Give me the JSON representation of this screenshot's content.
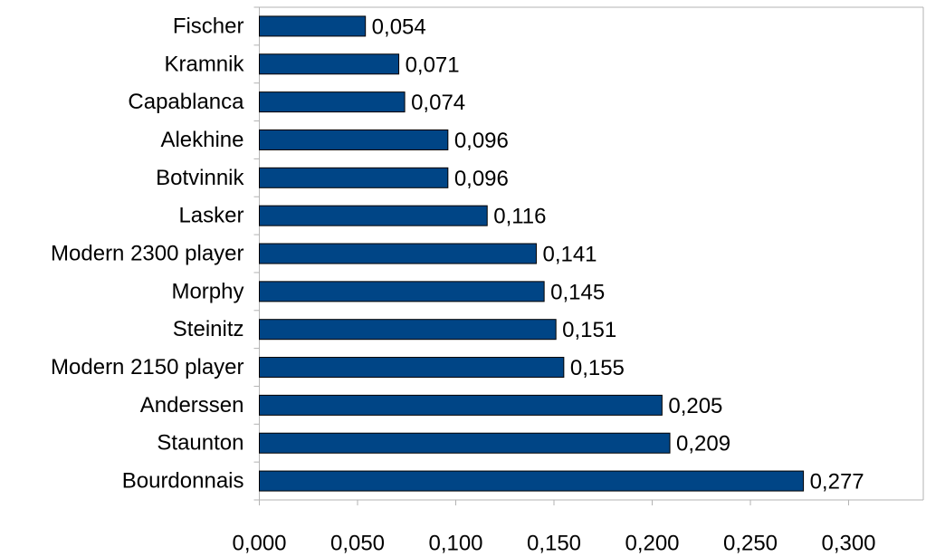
{
  "chart_data": {
    "type": "bar",
    "orientation": "horizontal",
    "categories": [
      "Fischer",
      "Kramnik",
      "Capablanca",
      "Alekhine",
      "Botvinnik",
      "Lasker",
      "Modern 2300 player",
      "Morphy",
      "Steinitz",
      "Modern 2150 player",
      "Anderssen",
      "Staunton",
      "Bourdonnais"
    ],
    "values": [
      0.054,
      0.071,
      0.074,
      0.096,
      0.096,
      0.116,
      0.141,
      0.145,
      0.151,
      0.155,
      0.205,
      0.209,
      0.277
    ],
    "data_labels": [
      "0,054",
      "0,071",
      "0,074",
      "0,096",
      "0,096",
      "0,116",
      "0,141",
      "0,145",
      "0,151",
      "0,155",
      "0,205",
      "0,209",
      "0,277"
    ],
    "x_ticks": [
      0,
      0.05,
      0.1,
      0.15,
      0.2,
      0.25,
      0.3
    ],
    "x_tick_labels": [
      "0,000",
      "0,050",
      "0,100",
      "0,150",
      "0,200",
      "0,250",
      "0,300"
    ],
    "xlim": [
      0,
      0.33
    ],
    "title": "",
    "xlabel": "",
    "ylabel": "",
    "grid": false,
    "legend": "none",
    "colors": {
      "bar_fill": "#004586",
      "bar_stroke": "#000000",
      "axis": "#b3b3b3"
    }
  }
}
